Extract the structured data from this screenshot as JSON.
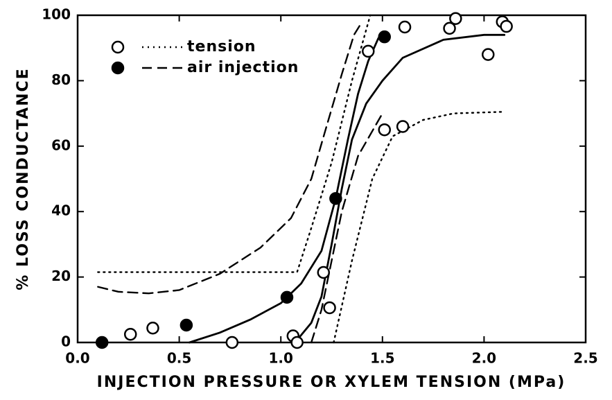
{
  "chart_data": {
    "type": "scatter",
    "xlabel": "INJECTION PRESSURE OR XYLEM TENSION (MPa)",
    "ylabel": "% LOSS CONDUCTANCE",
    "xlim": [
      0,
      2.5
    ],
    "ylim": [
      0,
      100
    ],
    "xticks": [
      {
        "value": 0,
        "label": "0.0"
      },
      {
        "value": 0.5,
        "label": "0.5"
      },
      {
        "value": 1,
        "label": "1.0"
      },
      {
        "value": 1.5,
        "label": "1.5"
      },
      {
        "value": 2,
        "label": "2.0"
      },
      {
        "value": 2.5,
        "label": "2.5"
      }
    ],
    "yticks": [
      0,
      20,
      40,
      60,
      80,
      100
    ],
    "color": "#000000",
    "legend": "upper left",
    "series": [
      {
        "name": "tension",
        "marker": "open",
        "line": "dotted",
        "x": [
          0.26,
          0.37,
          0.76,
          1.06,
          1.08,
          1.21,
          1.24,
          1.43,
          1.51,
          1.6,
          1.61,
          1.83,
          1.86,
          2.02,
          2.09,
          2.11
        ],
        "values": [
          2.5,
          4.4,
          0,
          2,
          0,
          21.4,
          10.6,
          89,
          65,
          66,
          96.4,
          96,
          99,
          88,
          98,
          96.6
        ]
      },
      {
        "name": "air injection",
        "marker": "filled",
        "line": "dashed",
        "x": [
          0.12,
          0.535,
          1.03,
          1.27,
          1.51
        ],
        "values": [
          0,
          5.3,
          13.8,
          44,
          93.4
        ]
      }
    ],
    "curves": [
      {
        "style": "solid",
        "x": [
          0.55,
          0.7,
          0.85,
          1.0,
          1.1,
          1.2,
          1.27,
          1.33,
          1.38,
          1.43,
          1.48
        ],
        "values": [
          0,
          3,
          7,
          12,
          18,
          28,
          44,
          62,
          76,
          86,
          93
        ]
      },
      {
        "style": "solid",
        "x": [
          1.07,
          1.15,
          1.2,
          1.25,
          1.3,
          1.35,
          1.42,
          1.5,
          1.6,
          1.8,
          2.0,
          2.1
        ],
        "values": [
          0,
          6,
          14,
          30,
          47,
          62,
          73,
          80,
          87,
          92.5,
          94,
          94
        ]
      },
      {
        "style": "dashed",
        "x": [
          0.1,
          0.2,
          0.35,
          0.5,
          0.7,
          0.9,
          1.05,
          1.15,
          1.22,
          1.3,
          1.36,
          1.4
        ],
        "values": [
          17,
          15.5,
          15,
          16,
          21,
          29,
          38,
          50,
          65,
          82,
          94,
          98
        ]
      },
      {
        "style": "dashed",
        "x": [
          1.15,
          1.2,
          1.25,
          1.3,
          1.38,
          1.5
        ],
        "values": [
          0,
          10,
          25,
          40,
          57,
          70
        ]
      },
      {
        "style": "dotted",
        "x": [
          0.1,
          1.08,
          1.15,
          1.25,
          1.35,
          1.44
        ],
        "values": [
          21.5,
          21.5,
          35,
          55,
          80,
          100
        ]
      },
      {
        "style": "dotted",
        "x": [
          1.26,
          1.35,
          1.45,
          1.55,
          1.7,
          1.85,
          2.1
        ],
        "values": [
          0,
          25,
          50,
          63,
          68,
          70,
          70.5
        ]
      }
    ]
  }
}
